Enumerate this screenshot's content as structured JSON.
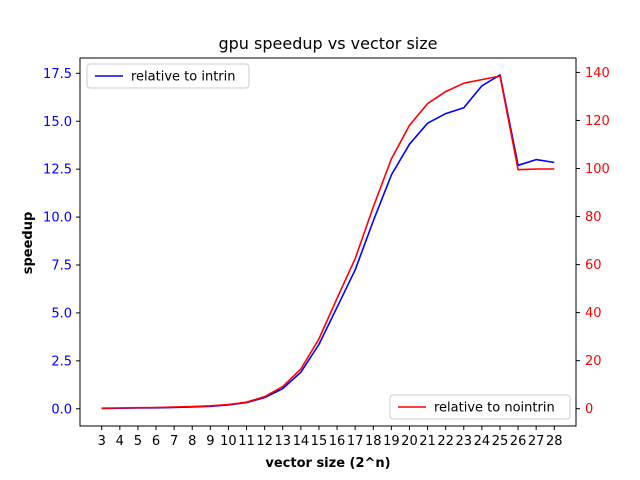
{
  "chart_data": {
    "type": "line",
    "title": "gpu speedup vs vector size",
    "xlabel": "vector size (2^n)",
    "ylabel": "speedup",
    "ylabel_right": "",
    "categories": [
      "3",
      "4",
      "5",
      "6",
      "7",
      "8",
      "9",
      "10",
      "11",
      "12",
      "13",
      "14",
      "15",
      "16",
      "17",
      "18",
      "19",
      "20",
      "21",
      "22",
      "23",
      "24",
      "25",
      "26",
      "27",
      "28"
    ],
    "x": [
      3,
      4,
      5,
      6,
      7,
      8,
      9,
      10,
      11,
      12,
      13,
      14,
      15,
      16,
      17,
      18,
      19,
      20,
      21,
      22,
      23,
      24,
      25,
      26,
      27,
      28
    ],
    "ylim": [
      -0.9,
      18.3
    ],
    "ylim_right": [
      -7.2,
      146.0
    ],
    "yticks_left": [
      "0.0",
      "2.5",
      "5.0",
      "7.5",
      "10.0",
      "12.5",
      "15.0",
      "17.5"
    ],
    "yticks_left_values": [
      0,
      2.5,
      5,
      7.5,
      10,
      12.5,
      15,
      17.5
    ],
    "yticks_right": [
      "0",
      "20",
      "40",
      "60",
      "80",
      "100",
      "120",
      "140"
    ],
    "yticks_right_values": [
      0,
      20,
      40,
      60,
      80,
      100,
      120,
      140
    ],
    "grid": false,
    "series": [
      {
        "name": "relative to intrin",
        "axis": "left",
        "color": "#0000ff",
        "legend_position": "upper left",
        "values": [
          0.02,
          0.03,
          0.04,
          0.05,
          0.07,
          0.09,
          0.13,
          0.2,
          0.32,
          0.58,
          1.05,
          1.9,
          3.35,
          5.3,
          7.25,
          9.8,
          12.2,
          13.8,
          14.9,
          15.4,
          15.7,
          16.85,
          17.42,
          12.7,
          13.0,
          12.85
        ]
      },
      {
        "name": "relative to nointrin",
        "axis": "right",
        "color": "#ff0000",
        "legend_position": "lower right",
        "values": [
          0.2,
          0.3,
          0.4,
          0.5,
          0.7,
          0.9,
          1.2,
          1.7,
          2.7,
          5.0,
          9.2,
          16.5,
          29.0,
          46.0,
          62.5,
          84.0,
          104.0,
          118.0,
          127.0,
          132.0,
          135.5,
          137.0,
          138.5,
          99.5,
          99.8,
          99.8
        ]
      }
    ],
    "colors": {
      "left_axis": "#0000ff",
      "right_axis": "#ff0000"
    }
  }
}
